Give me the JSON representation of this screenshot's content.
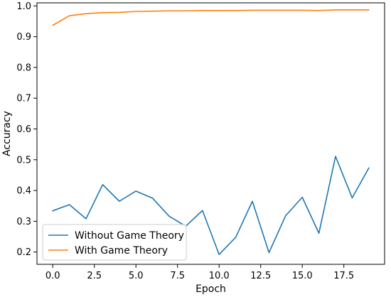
{
  "chart_data": {
    "type": "line",
    "xlabel": "Epoch",
    "ylabel": "Accuracy",
    "x": [
      0,
      1,
      2,
      3,
      4,
      5,
      6,
      7,
      8,
      9,
      10,
      11,
      12,
      13,
      14,
      15,
      16,
      17,
      18,
      19
    ],
    "xlim": [
      -0.95,
      19.95
    ],
    "ylim": [
      0.16,
      1.01
    ],
    "xticks": [
      0.0,
      2.5,
      5.0,
      7.5,
      10.0,
      12.5,
      15.0,
      17.5
    ],
    "xtick_labels": [
      "0.0",
      "2.5",
      "5.0",
      "7.5",
      "10.0",
      "12.5",
      "15.0",
      "17.5"
    ],
    "yticks": [
      0.2,
      0.3,
      0.4,
      0.5,
      0.6,
      0.7,
      0.8,
      0.9,
      1.0
    ],
    "ytick_labels": [
      "0.2",
      "0.3",
      "0.4",
      "0.5",
      "0.6",
      "0.7",
      "0.8",
      "0.9",
      "1.0"
    ],
    "grid": false,
    "legend_position": "lower-left",
    "series": [
      {
        "name": "Without Game Theory",
        "color": "#1f77b4",
        "values": [
          0.334,
          0.354,
          0.308,
          0.419,
          0.365,
          0.398,
          0.375,
          0.316,
          0.284,
          0.335,
          0.192,
          0.248,
          0.365,
          0.198,
          0.318,
          0.378,
          0.261,
          0.511,
          0.376,
          0.473
        ]
      },
      {
        "name": "With Game Theory",
        "color": "#ff7f0e",
        "values": [
          0.937,
          0.968,
          0.975,
          0.978,
          0.979,
          0.982,
          0.983,
          0.984,
          0.984,
          0.985,
          0.985,
          0.985,
          0.986,
          0.986,
          0.986,
          0.986,
          0.985,
          0.987,
          0.987,
          0.987
        ]
      }
    ]
  }
}
